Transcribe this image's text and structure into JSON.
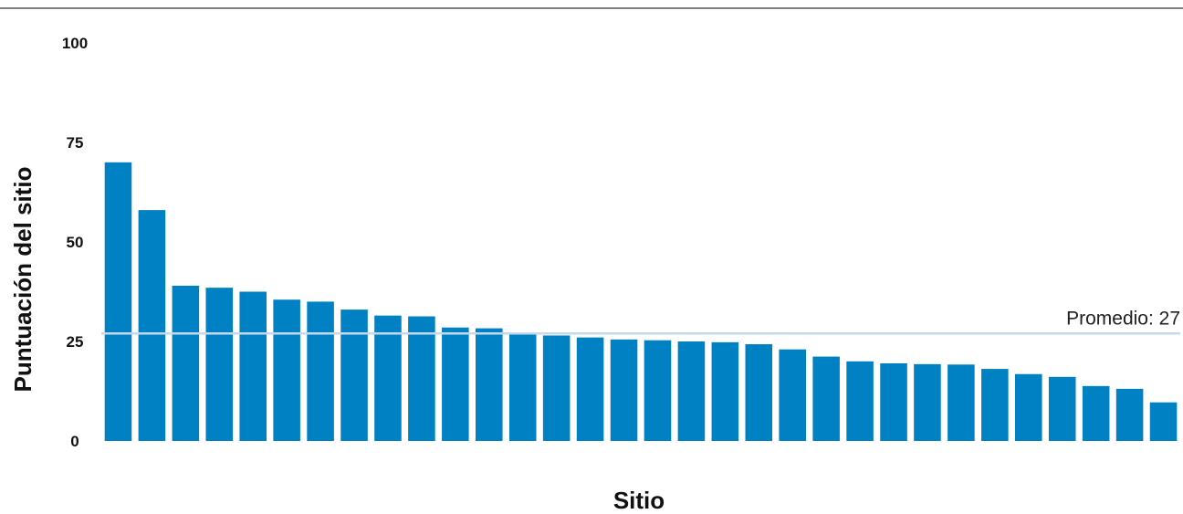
{
  "chart_data": {
    "type": "bar",
    "title": "",
    "xlabel": "Sitio",
    "ylabel": "Puntuación del sitio",
    "ylim": [
      0,
      100
    ],
    "yticks": [
      "0",
      "25",
      "50",
      "75",
      "100"
    ],
    "grid": false,
    "bar_color": "#0081c3",
    "reference_line": {
      "value": 27,
      "label": "Promedio: 27",
      "color": "#c6d9ec"
    },
    "values": [
      70,
      58,
      39,
      38.5,
      37.5,
      35.5,
      35,
      33,
      31.5,
      31.3,
      28.5,
      28.3,
      27,
      26.5,
      26,
      25.5,
      25.3,
      25,
      24.8,
      24.3,
      23,
      21.2,
      20,
      19.5,
      19.3,
      19.2,
      18.1,
      16.8,
      16.1,
      13.8,
      13.1,
      9.7
    ]
  }
}
